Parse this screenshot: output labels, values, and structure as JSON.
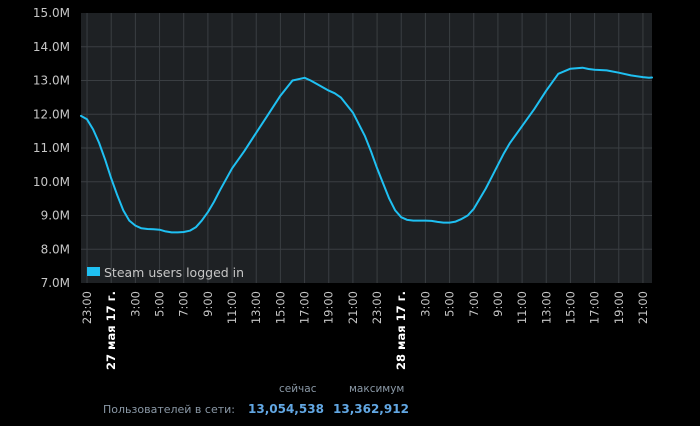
{
  "chart_data": {
    "type": "line",
    "title": "",
    "xlabel": "",
    "ylabel": "",
    "y_tick_labels": [
      "7.0M",
      "8.0M",
      "9.0M",
      "10.0M",
      "11.0M",
      "12.0M",
      "13.0M",
      "14.0M",
      "15.0M"
    ],
    "ylim": [
      7000000,
      15000000
    ],
    "x_tick_labels": [
      "23:00",
      "27 мая 17 г.",
      "3:00",
      "5:00",
      "7:00",
      "9:00",
      "11:00",
      "13:00",
      "15:00",
      "17:00",
      "19:00",
      "21:00",
      "23:00",
      "28 мая 17 г.",
      "3:00",
      "5:00",
      "7:00",
      "9:00",
      "11:00",
      "13:00",
      "15:00",
      "17:00",
      "19:00",
      "21:00"
    ],
    "x_major_ticks": [
      "27 мая 17 г.",
      "28 мая 17 г."
    ],
    "x_hours_range": [
      -1.5,
      45.75
    ],
    "grid": true,
    "legend_position": "bottom-left",
    "series": [
      {
        "name": "Steam users logged in",
        "color": "#1fc0f2",
        "x_hours": [
          -1.5,
          -1.0,
          -0.5,
          0.0,
          0.5,
          1.0,
          1.5,
          2.0,
          2.5,
          3.0,
          3.5,
          4.0,
          4.5,
          5.0,
          5.5,
          6.0,
          6.5,
          7.0,
          7.5,
          8.0,
          8.5,
          9.0,
          9.5,
          10.0,
          11.0,
          12.0,
          13.0,
          14.0,
          15.0,
          16.0,
          17.0,
          17.5,
          18.0,
          18.5,
          19.0,
          19.5,
          20.0,
          21.0,
          22.0,
          22.5,
          23.0,
          23.5,
          24.0,
          24.5,
          25.0,
          25.5,
          26.0,
          26.5,
          27.0,
          27.5,
          28.0,
          28.5,
          29.0,
          29.5,
          30.0,
          30.5,
          31.0,
          31.5,
          32.0,
          32.5,
          33.0,
          33.5,
          34.0,
          35.0,
          36.0,
          37.0,
          38.0,
          39.0,
          40.0,
          40.5,
          41.0,
          42.0,
          43.0,
          44.0,
          45.0,
          45.5,
          45.75
        ],
        "values": [
          11950000,
          11850000,
          11550000,
          11150000,
          10650000,
          10100000,
          9600000,
          9150000,
          8850000,
          8700000,
          8620000,
          8600000,
          8590000,
          8580000,
          8530000,
          8500000,
          8500000,
          8510000,
          8550000,
          8650000,
          8850000,
          9100000,
          9400000,
          9750000,
          10400000,
          10900000,
          11450000,
          12000000,
          12550000,
          13000000,
          13080000,
          13000000,
          12900000,
          12800000,
          12700000,
          12620000,
          12500000,
          12050000,
          11350000,
          10900000,
          10400000,
          9950000,
          9500000,
          9150000,
          8950000,
          8870000,
          8850000,
          8850000,
          8850000,
          8840000,
          8810000,
          8790000,
          8790000,
          8820000,
          8900000,
          9000000,
          9200000,
          9500000,
          9800000,
          10150000,
          10500000,
          10850000,
          11150000,
          11650000,
          12150000,
          12700000,
          13200000,
          13350000,
          13380000,
          13340000,
          13320000,
          13300000,
          13230000,
          13150000,
          13100000,
          13080000,
          13090000
        ]
      }
    ]
  },
  "stats": {
    "now_header": "сейчас",
    "max_header": "максимум",
    "label": "Пользователей в сети:",
    "now_value": "13,054,538",
    "max_value": "13,362,912"
  }
}
